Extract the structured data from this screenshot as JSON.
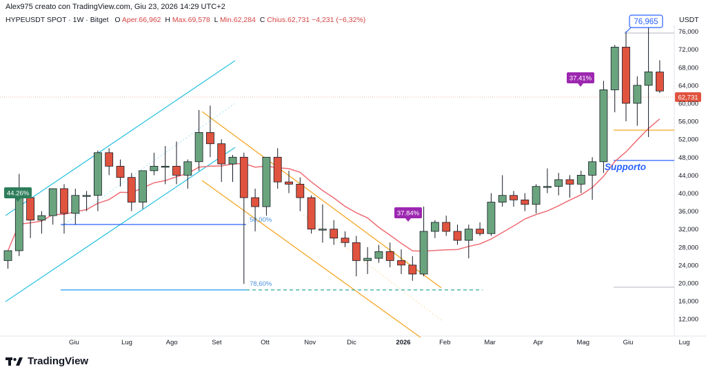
{
  "header": {
    "author_line": "Alex975 creato con TradingView.com, Giu 23, 2026 14:29 UTC+2"
  },
  "symbol_bar": {
    "symbol": "HYPEUSDT SPOT · 1W · Bitget",
    "o_label": "O",
    "open": "Aper.66,962",
    "h_label": "H",
    "high": "Max.69,578",
    "l_label": "L",
    "low": "Min.62,284",
    "c_label": "C",
    "close": "Chius.62,731",
    "change": "−4,231 (−6,32%)"
  },
  "currency": "USDT",
  "brand": {
    "name": "TradingView",
    "icon": "tradingview-logo-icon"
  },
  "colors": {
    "up": "#6aa47e",
    "down": "#e0533f",
    "ma": "#ef6b73",
    "channel_up": "#2ec3e0",
    "channel_down": "#f5a623",
    "level": "#2962ff",
    "purple": "#9c27b0",
    "green_tag": "#2e7d5b"
  },
  "chart_data": {
    "type": "candlestick",
    "ylim": [
      8000,
      80000
    ],
    "yticks": [
      "12,000",
      "16,000",
      "20,000",
      "24,000",
      "28,000",
      "32,000",
      "36,000",
      "40,000",
      "44,000",
      "48,000",
      "52,000",
      "56,000",
      "60,000",
      "64,000",
      "68,000",
      "72,000",
      "76,000"
    ],
    "xticks": [
      "Giu",
      "Lug",
      "Ago",
      "Set",
      "Ott",
      "Nov",
      "Dic",
      "2026",
      "Feb",
      "Mar",
      "Apr",
      "Mag",
      "Giu",
      "Lug"
    ],
    "week_start": "2025-05-05",
    "candles": [
      [
        25.0,
        27.2,
        23.2,
        27.2
      ],
      [
        27.2,
        44.3,
        26.0,
        39.0
      ],
      [
        39.0,
        40.0,
        30.0,
        34.0
      ],
      [
        34.0,
        36.0,
        31.0,
        35.0
      ],
      [
        35.0,
        41.0,
        33.0,
        41.0
      ],
      [
        41.0,
        42.0,
        31.0,
        35.5
      ],
      [
        35.5,
        41.0,
        33.0,
        39.5
      ],
      [
        39.5,
        40.5,
        36.0,
        39.5
      ],
      [
        39.5,
        49.5,
        36.0,
        49.0
      ],
      [
        49.0,
        50.0,
        44.0,
        46.0
      ],
      [
        46.0,
        47.5,
        41.5,
        43.5
      ],
      [
        43.5,
        44.5,
        36.0,
        38.0
      ],
      [
        38.0,
        45.0,
        36.5,
        45.0
      ],
      [
        45.0,
        49.0,
        44.0,
        46.0
      ],
      [
        46.0,
        50.5,
        42.0,
        46.0
      ],
      [
        46.0,
        51.5,
        42.0,
        44.0
      ],
      [
        44.0,
        47.5,
        41.0,
        47.0
      ],
      [
        47.0,
        58.5,
        45.0,
        53.5
      ],
      [
        53.5,
        59.5,
        48.0,
        51.0
      ],
      [
        51.0,
        52.0,
        42.5,
        46.5
      ],
      [
        46.5,
        48.5,
        42.5,
        48.0
      ],
      [
        48.0,
        49.0,
        19.8,
        39.0
      ],
      [
        39.0,
        41.0,
        31.5,
        37.0
      ],
      [
        37.0,
        48.0,
        35.0,
        48.0
      ],
      [
        48.0,
        50.0,
        41.0,
        42.5
      ],
      [
        42.5,
        45.0,
        40.0,
        42.0
      ],
      [
        42.0,
        43.5,
        36.0,
        39.0
      ],
      [
        39.0,
        39.5,
        31.0,
        32.0
      ],
      [
        32.0,
        37.5,
        29.0,
        32.0
      ],
      [
        32.0,
        34.0,
        28.5,
        30.0
      ],
      [
        30.0,
        31.5,
        28.0,
        29.0
      ],
      [
        29.0,
        30.5,
        21.5,
        25.0
      ],
      [
        25.0,
        28.0,
        22.0,
        25.5
      ],
      [
        25.5,
        28.5,
        24.5,
        27.0
      ],
      [
        27.0,
        29.0,
        23.5,
        25.0
      ],
      [
        25.0,
        27.5,
        22.0,
        24.0
      ],
      [
        24.0,
        26.0,
        20.5,
        22.0
      ],
      [
        22.0,
        37.0,
        21.5,
        31.5
      ],
      [
        31.5,
        34.0,
        30.0,
        33.5
      ],
      [
        33.5,
        35.0,
        30.5,
        31.5
      ],
      [
        31.5,
        33.0,
        28.5,
        29.5
      ],
      [
        29.5,
        33.0,
        25.5,
        32.0
      ],
      [
        32.0,
        33.5,
        30.5,
        31.0
      ],
      [
        31.0,
        40.0,
        30.5,
        38.0
      ],
      [
        38.0,
        44.0,
        37.0,
        39.5
      ],
      [
        39.5,
        40.5,
        37.0,
        38.5
      ],
      [
        38.5,
        40.0,
        36.0,
        37.5
      ],
      [
        37.5,
        42.0,
        35.5,
        41.5
      ],
      [
        41.5,
        45.5,
        40.0,
        41.5
      ],
      [
        41.5,
        44.5,
        39.5,
        43.0
      ],
      [
        43.0,
        44.0,
        39.0,
        42.0
      ],
      [
        42.0,
        45.0,
        40.0,
        44.0
      ],
      [
        44.0,
        48.0,
        38.5,
        47.0
      ],
      [
        47.0,
        65.0,
        44.5,
        63.0
      ],
      [
        63.0,
        73.0,
        58.0,
        72.5
      ],
      [
        72.5,
        76.0,
        56.0,
        60.0
      ],
      [
        60.0,
        66.0,
        55.0,
        64.0
      ],
      [
        64.0,
        76.965,
        52.5,
        67.0
      ],
      [
        66.962,
        69.578,
        62.284,
        62.731
      ]
    ],
    "last_price": "62,731",
    "labels": {
      "high_tag": "76,965",
      "pct_left": "44.26%",
      "pct_feb": "37.84%",
      "pct_may": "37.41%",
      "fib50": "50,00%",
      "fib786": "78,60%",
      "support": "Supporto"
    }
  }
}
